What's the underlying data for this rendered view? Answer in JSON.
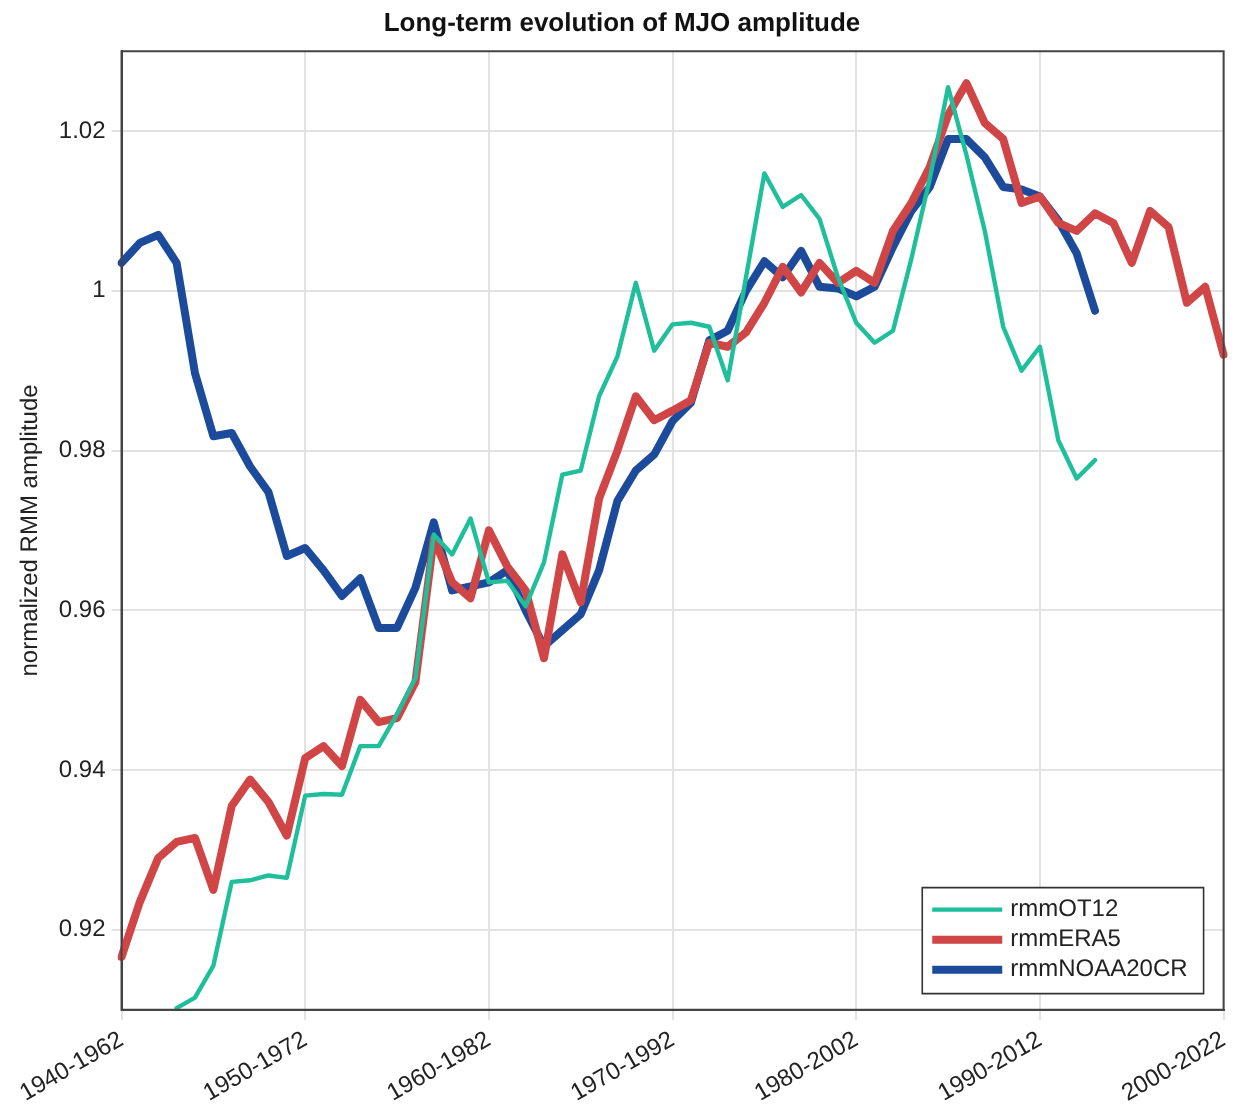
{
  "chart_data": {
    "type": "line",
    "title": "Long-term evolution of MJO amplitude",
    "ylabel": "normalized RMM amplitude",
    "categories": [
      "1940-1962",
      null,
      null,
      null,
      null,
      null,
      null,
      null,
      null,
      null,
      "1950-1972",
      null,
      null,
      null,
      null,
      null,
      null,
      null,
      null,
      null,
      "1960-1982",
      null,
      null,
      null,
      null,
      null,
      null,
      null,
      null,
      null,
      "1970-1992",
      null,
      null,
      null,
      null,
      null,
      null,
      null,
      null,
      null,
      "1980-2002",
      null,
      null,
      null,
      null,
      null,
      null,
      null,
      null,
      null,
      "1990-2012",
      null,
      null,
      null,
      null,
      null,
      null,
      null,
      null,
      null,
      "2000-2022"
    ],
    "series": [
      {
        "name": "rmmOT12",
        "color": "#1fbf9b",
        "values": [
          null,
          null,
          null,
          0.9102,
          0.9115,
          0.9155,
          0.926,
          0.9262,
          0.9268,
          0.9265,
          0.9368,
          0.937,
          0.9369,
          0.943,
          0.943,
          0.947,
          0.9515,
          0.9695,
          0.967,
          0.9715,
          0.9635,
          0.9637,
          0.9605,
          0.966,
          0.977,
          0.9775,
          0.9868,
          0.9918,
          1.001,
          0.9925,
          0.9958,
          0.996,
          0.9955,
          0.9888,
          1.0017,
          1.0147,
          1.0105,
          1.012,
          1.009,
          1.0017,
          0.996,
          0.9935,
          0.995,
          1.004,
          1.014,
          1.0255,
          1.017,
          1.0075,
          0.9955,
          0.99,
          0.993,
          0.9813,
          0.9765,
          0.9788,
          null,
          null,
          null,
          null,
          null,
          null,
          null
        ]
      },
      {
        "name": "rmmERA5",
        "color": "#d04545",
        "values": [
          0.9166,
          0.9235,
          0.929,
          0.931,
          0.9315,
          0.925,
          0.9355,
          0.9388,
          0.936,
          0.9318,
          0.9415,
          0.943,
          0.9405,
          0.9488,
          0.946,
          0.9465,
          0.951,
          0.969,
          0.9635,
          0.9615,
          0.97,
          0.9655,
          0.9625,
          0.954,
          0.967,
          0.961,
          0.974,
          0.98,
          0.9868,
          0.9838,
          0.985,
          0.9863,
          0.9935,
          0.993,
          0.9948,
          0.9985,
          1.003,
          0.9998,
          1.0035,
          1.001,
          1.0025,
          1.001,
          1.0075,
          1.011,
          1.0155,
          1.022,
          1.026,
          1.021,
          1.019,
          1.011,
          1.0118,
          1.0085,
          1.0075,
          1.0097,
          1.0085,
          1.0035,
          1.01,
          1.008,
          0.9985,
          1.0005,
          0.992
        ]
      },
      {
        "name": "rmmNOAA20CR",
        "color": "#1c4b9c",
        "values": [
          1.0035,
          1.006,
          1.007,
          1.0035,
          0.9897,
          0.9818,
          0.9822,
          0.978,
          0.9748,
          0.9668,
          0.9678,
          0.965,
          0.9618,
          0.964,
          0.9578,
          0.9578,
          0.9628,
          0.971,
          0.9625,
          0.963,
          0.9635,
          0.965,
          0.96,
          0.9555,
          0.9575,
          0.9595,
          0.965,
          0.9737,
          0.9775,
          0.9795,
          0.9837,
          0.986,
          0.9938,
          0.995,
          1.0,
          1.0037,
          1.0017,
          1.005,
          1.0005,
          1.0003,
          0.9993,
          1.0005,
          1.0055,
          1.01,
          1.013,
          1.019,
          1.019,
          1.0167,
          1.013,
          1.0127,
          1.0118,
          1.0088,
          1.0047,
          0.9975,
          null,
          null,
          null,
          null,
          null,
          null,
          null
        ]
      }
    ],
    "ylim": [
      0.91,
      1.03
    ],
    "yticks": [
      0.92,
      0.94,
      0.96,
      0.98,
      1,
      1.02
    ],
    "grid": true,
    "legend": "bottom right",
    "marker": "none",
    "line_style": "solid"
  }
}
